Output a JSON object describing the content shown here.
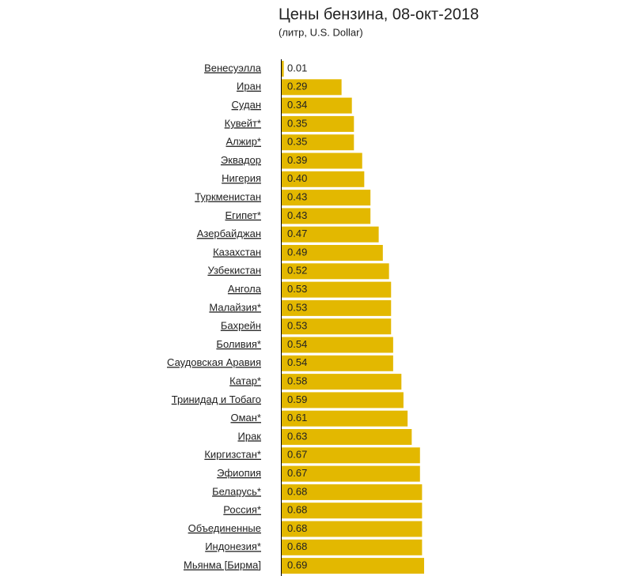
{
  "chart_data": {
    "type": "bar",
    "orientation": "horizontal",
    "title": "Цены бензина, 08-окт-2018",
    "subtitle": "(литр, U.S. Dollar)",
    "categories": [
      "Венесуэлла",
      "Иран",
      "Судан",
      "Кувейт*",
      "Алжир*",
      "Эквадор",
      "Нигерия",
      "Туркменистан",
      "Египет*",
      "Азербайджан",
      "Казахстан",
      "Узбекистан",
      "Ангола",
      "Малайзия*",
      "Бахрейн",
      "Боливия*",
      "Саудовская Аравия",
      "Катар*",
      "Тринидад и Тобаго",
      "Оман*",
      "Ирак",
      "Киргизстан*",
      "Эфиопия",
      "Беларусь*",
      "Россия*",
      "Объединенные",
      "Индонезия*",
      "Мьянма [Бирма]"
    ],
    "values": [
      0.01,
      0.29,
      0.34,
      0.35,
      0.35,
      0.39,
      0.4,
      0.43,
      0.43,
      0.47,
      0.49,
      0.52,
      0.53,
      0.53,
      0.53,
      0.54,
      0.54,
      0.58,
      0.59,
      0.61,
      0.63,
      0.67,
      0.67,
      0.68,
      0.68,
      0.68,
      0.68,
      0.69
    ],
    "value_labels": [
      "0.01",
      "0.29",
      "0.34",
      "0.35",
      "0.35",
      "0.39",
      "0.40",
      "0.43",
      "0.43",
      "0.47",
      "0.49",
      "0.52",
      "0.53",
      "0.53",
      "0.53",
      "0.54",
      "0.54",
      "0.58",
      "0.59",
      "0.61",
      "0.63",
      "0.67",
      "0.67",
      "0.68",
      "0.68",
      "0.68",
      "0.68",
      "0.69"
    ],
    "color": "#e3b800"
  }
}
